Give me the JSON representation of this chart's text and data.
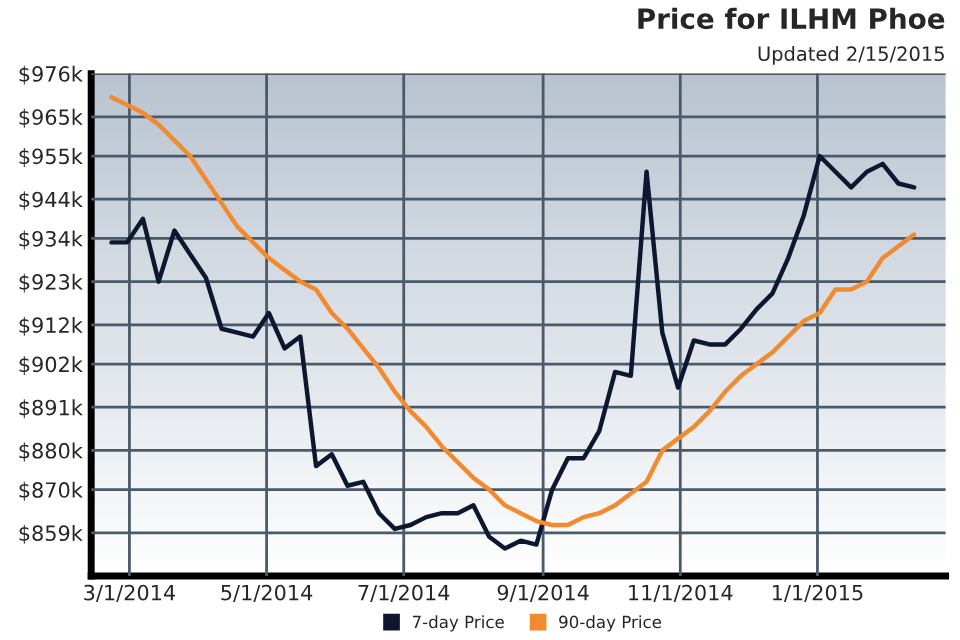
{
  "chart_data": {
    "type": "line",
    "title": "Price for ILHM Phoe",
    "subtitle": "Updated 2/15/2015",
    "x": [
      "2014-02-21",
      "2014-02-28",
      "2014-03-07",
      "2014-03-14",
      "2014-03-21",
      "2014-03-28",
      "2014-04-04",
      "2014-04-11",
      "2014-04-18",
      "2014-04-25",
      "2014-05-02",
      "2014-05-09",
      "2014-05-16",
      "2014-05-23",
      "2014-05-30",
      "2014-06-06",
      "2014-06-13",
      "2014-06-20",
      "2014-06-27",
      "2014-07-04",
      "2014-07-11",
      "2014-07-18",
      "2014-07-25",
      "2014-08-01",
      "2014-08-08",
      "2014-08-15",
      "2014-08-22",
      "2014-08-29",
      "2014-09-05",
      "2014-09-12",
      "2014-09-19",
      "2014-09-26",
      "2014-10-03",
      "2014-10-10",
      "2014-10-17",
      "2014-10-24",
      "2014-10-31",
      "2014-11-07",
      "2014-11-14",
      "2014-11-21",
      "2014-11-28",
      "2014-12-05",
      "2014-12-12",
      "2014-12-19",
      "2014-12-26",
      "2015-01-02",
      "2015-01-09",
      "2015-01-16",
      "2015-01-23",
      "2015-01-30",
      "2015-02-06",
      "2015-02-13"
    ],
    "series": [
      {
        "name": "7-day Price",
        "color": "#0d1730",
        "values": [
          933,
          933,
          939,
          923,
          936,
          930,
          924,
          911,
          910,
          909,
          915,
          906,
          909,
          876,
          879,
          871,
          872,
          864,
          860,
          861,
          863,
          864,
          864,
          866,
          858,
          855,
          857,
          856,
          870,
          878,
          878,
          885,
          900,
          899,
          951,
          910,
          896,
          908,
          907,
          907,
          911,
          916,
          920,
          929,
          940,
          955,
          951,
          947,
          951,
          953,
          948,
          947
        ]
      },
      {
        "name": "90-day Price",
        "color": "#f28a30",
        "values": [
          970,
          968,
          966,
          963,
          959,
          955,
          949,
          943,
          937,
          933,
          929,
          926,
          923,
          921,
          915,
          911,
          906,
          901,
          895,
          890,
          886,
          881,
          877,
          873,
          870,
          866,
          864,
          862,
          861,
          861,
          863,
          864,
          866,
          869,
          872,
          880,
          883,
          886,
          890,
          895,
          899,
          902,
          905,
          909,
          913,
          915,
          921,
          921,
          923,
          929,
          932,
          935
        ]
      }
    ],
    "xlim": [
      "2014-02-12",
      "2015-02-27"
    ],
    "xticks": [
      {
        "value": "2014-03-01",
        "label": "3/1/2014"
      },
      {
        "value": "2014-05-01",
        "label": "5/1/2014"
      },
      {
        "value": "2014-07-01",
        "label": "7/1/2014"
      },
      {
        "value": "2014-09-01",
        "label": "9/1/2014"
      },
      {
        "value": "2014-11-01",
        "label": "11/1/2014"
      },
      {
        "value": "2015-01-01",
        "label": "1/1/2015"
      }
    ],
    "ylim": [
      848,
      976
    ],
    "yticks": [
      {
        "value": 859,
        "label": "$859k"
      },
      {
        "value": 870,
        "label": "$870k"
      },
      {
        "value": 880,
        "label": "$880k"
      },
      {
        "value": 891,
        "label": "$891k"
      },
      {
        "value": 902,
        "label": "$902k"
      },
      {
        "value": 912,
        "label": "$912k"
      },
      {
        "value": 923,
        "label": "$923k"
      },
      {
        "value": 934,
        "label": "$934k"
      },
      {
        "value": 944,
        "label": "$944k"
      },
      {
        "value": 955,
        "label": "$955k"
      },
      {
        "value": 965,
        "label": "$965k"
      },
      {
        "value": 976,
        "label": "$976k"
      }
    ],
    "grid": true,
    "legend": "bottom",
    "marker": "none",
    "line_style": "solid"
  }
}
